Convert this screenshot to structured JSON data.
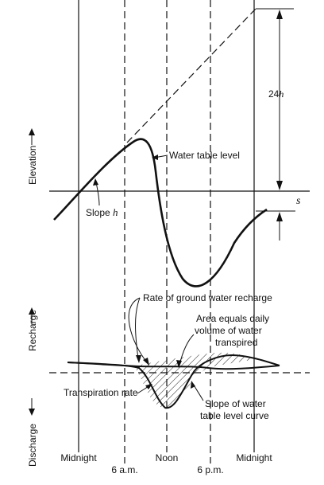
{
  "diagram": {
    "upper": {
      "y_axis_label": "Elevation",
      "water_table_label": "Water table level",
      "slope_label_text": "Slope ",
      "slope_label_var": "h",
      "dimension_number": "24",
      "dimension_var": "h",
      "drawdown_label": "s"
    },
    "lower": {
      "recharge_label": "Recharge",
      "discharge_label": "Discharge",
      "recharge_rate_label": "Rate of ground water recharge",
      "area_label_line1": "Area equals daily",
      "area_label_line2": "volume of water",
      "area_label_line3": "transpired",
      "transpiration_label": "Transpiration rate",
      "slope_curve_line1": "Slope of water",
      "slope_curve_line2": "table level curve"
    },
    "time_axis": {
      "midnight_left": "Midnight",
      "six_am": "6 a.m.",
      "noon": "Noon",
      "six_pm": "6 p.m.",
      "midnight_right": "Midnight"
    }
  }
}
